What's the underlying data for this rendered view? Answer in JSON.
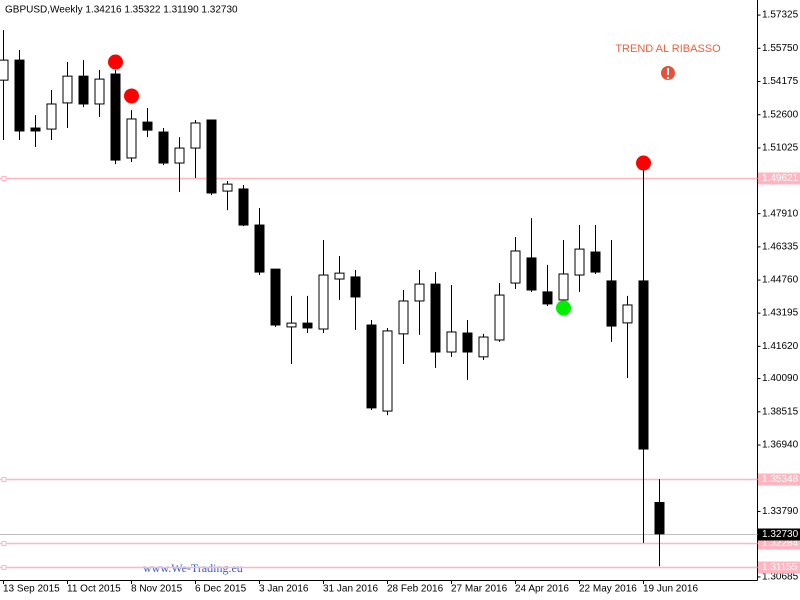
{
  "chart_data": {
    "type": "candlestick",
    "title": "GBPUSD,Weekly  1.34216 1.35322 1.31190 1.32730",
    "annotation": "TREND AL RIBASSO",
    "watermark": "www.We-Trading.eu",
    "categories": [
      "13 Sep 2015",
      null,
      null,
      null,
      "11 Oct 2015",
      null,
      null,
      null,
      "8 Nov 2015",
      null,
      null,
      null,
      "6 Dec 2015",
      null,
      null,
      null,
      "3 Jan 2016",
      null,
      null,
      null,
      "31 Jan 2016",
      null,
      null,
      null,
      "28 Feb 2016",
      null,
      null,
      null,
      "27 Mar 2016",
      null,
      null,
      null,
      "24 Apr 2016",
      null,
      null,
      null,
      "22 May 2016",
      null,
      null,
      null,
      "19 Jun 2016",
      null
    ],
    "open": [
      1.5424,
      1.5519,
      1.5197,
      1.5192,
      1.5316,
      1.5443,
      1.5311,
      1.5453,
      1.5055,
      1.5225,
      1.5178,
      1.5031,
      1.5102,
      1.5235,
      1.4898,
      1.4908,
      1.4737,
      1.4528,
      1.4254,
      1.4272,
      1.4244,
      1.4481,
      1.4491,
      1.4263,
      1.3855,
      1.4221,
      1.4377,
      1.4457,
      1.4135,
      1.4225,
      1.4112,
      1.4192,
      1.4462,
      1.4581,
      1.442,
      1.4382,
      1.45,
      1.4609,
      1.4472,
      1.4273,
      1.4472,
      1.34216
    ],
    "high": [
      1.5661,
      1.5567,
      1.5258,
      1.5377,
      1.551,
      1.5519,
      1.5472,
      1.5472,
      1.5282,
      1.5292,
      1.5197,
      1.5154,
      1.5235,
      1.5235,
      1.4946,
      1.4927,
      1.4818,
      1.4528,
      1.4401,
      1.4401,
      1.4666,
      1.459,
      1.4524,
      1.4287,
      1.4249,
      1.4429,
      1.4524,
      1.4514,
      1.4453,
      1.4287,
      1.4221,
      1.4462,
      1.468,
      1.477,
      1.4548,
      1.4666,
      1.4737,
      1.4737,
      1.4666,
      1.4401,
      1.4998,
      1.35322
    ],
    "low": [
      1.514,
      1.514,
      1.5107,
      1.514,
      1.5197,
      1.5296,
      1.5249,
      1.5026,
      1.5036,
      1.5154,
      1.5021,
      1.4894,
      1.496,
      1.4879,
      1.4808,
      1.4732,
      1.45,
      1.4254,
      1.4078,
      1.4225,
      1.4225,
      1.4382,
      1.424,
      1.386,
      1.3836,
      1.4078,
      1.4216,
      1.406,
      1.4112,
      1.4003,
      1.4097,
      1.4183,
      1.4434,
      1.442,
      1.4353,
      1.4372,
      1.442,
      1.4505,
      1.4183,
      1.4012,
      1.323,
      1.3119
    ],
    "close": [
      1.5519,
      1.5183,
      1.5183,
      1.5311,
      1.5443,
      1.5311,
      1.5429,
      1.5045,
      1.524,
      1.5187,
      1.5031,
      1.5102,
      1.5221,
      1.4889,
      1.4931,
      1.4737,
      1.4514,
      1.4263,
      1.4272,
      1.4249,
      1.45,
      1.4509,
      1.4396,
      1.387,
      1.4235,
      1.4377,
      1.4457,
      1.4135,
      1.423,
      1.4135,
      1.4206,
      1.4405,
      1.4614,
      1.4429,
      1.4363,
      1.4505,
      1.4623,
      1.4514,
      1.4258,
      1.4358,
      1.3675,
      1.3273
    ],
    "up_color": "#ffffff",
    "down_color": "#000000",
    "sell_signals": {
      "color": "#ff0000",
      "values": [
        null,
        null,
        null,
        null,
        null,
        null,
        null,
        1.551,
        1.5349,
        null,
        null,
        null,
        null,
        null,
        null,
        null,
        null,
        null,
        null,
        null,
        null,
        null,
        null,
        null,
        null,
        null,
        null,
        null,
        null,
        null,
        null,
        null,
        null,
        null,
        null,
        null,
        null,
        null,
        null,
        null,
        1.5031,
        null
      ]
    },
    "buy_signals": {
      "color": "#00ee00",
      "values": [
        null,
        null,
        null,
        null,
        null,
        null,
        null,
        null,
        null,
        null,
        null,
        null,
        null,
        null,
        null,
        null,
        null,
        null,
        null,
        null,
        null,
        null,
        null,
        null,
        null,
        null,
        null,
        null,
        null,
        null,
        null,
        null,
        null,
        null,
        null,
        1.4344,
        null,
        null,
        null,
        null,
        null,
        null
      ]
    },
    "levels": [
      1.49621,
      1.35348,
      1.32284,
      1.31155
    ],
    "level_color": "#ffb6c1",
    "last_price": {
      "value": 1.3273,
      "label": "1.32730"
    },
    "ylim": [
      1.3054,
      1.5804
    ],
    "yticks": [
      1.57325,
      {
        "value": 1.5575,
        "label": "1.55750"
      },
      1.54175,
      {
        "value": 1.526,
        "label": "1.52600"
      },
      1.51025,
      {
        "value": 1.4791,
        "label": "1.47910"
      },
      1.46335,
      {
        "value": 1.4476,
        "label": "1.44760"
      },
      1.43195,
      {
        "value": 1.4162,
        "label": "1.41620"
      },
      {
        "value": 1.4009,
        "label": "1.40090"
      },
      1.38515,
      {
        "value": 1.3694,
        "label": "1.36940"
      },
      {
        "value": 1.3379,
        "label": "1.33790"
      },
      1.30685
    ]
  }
}
